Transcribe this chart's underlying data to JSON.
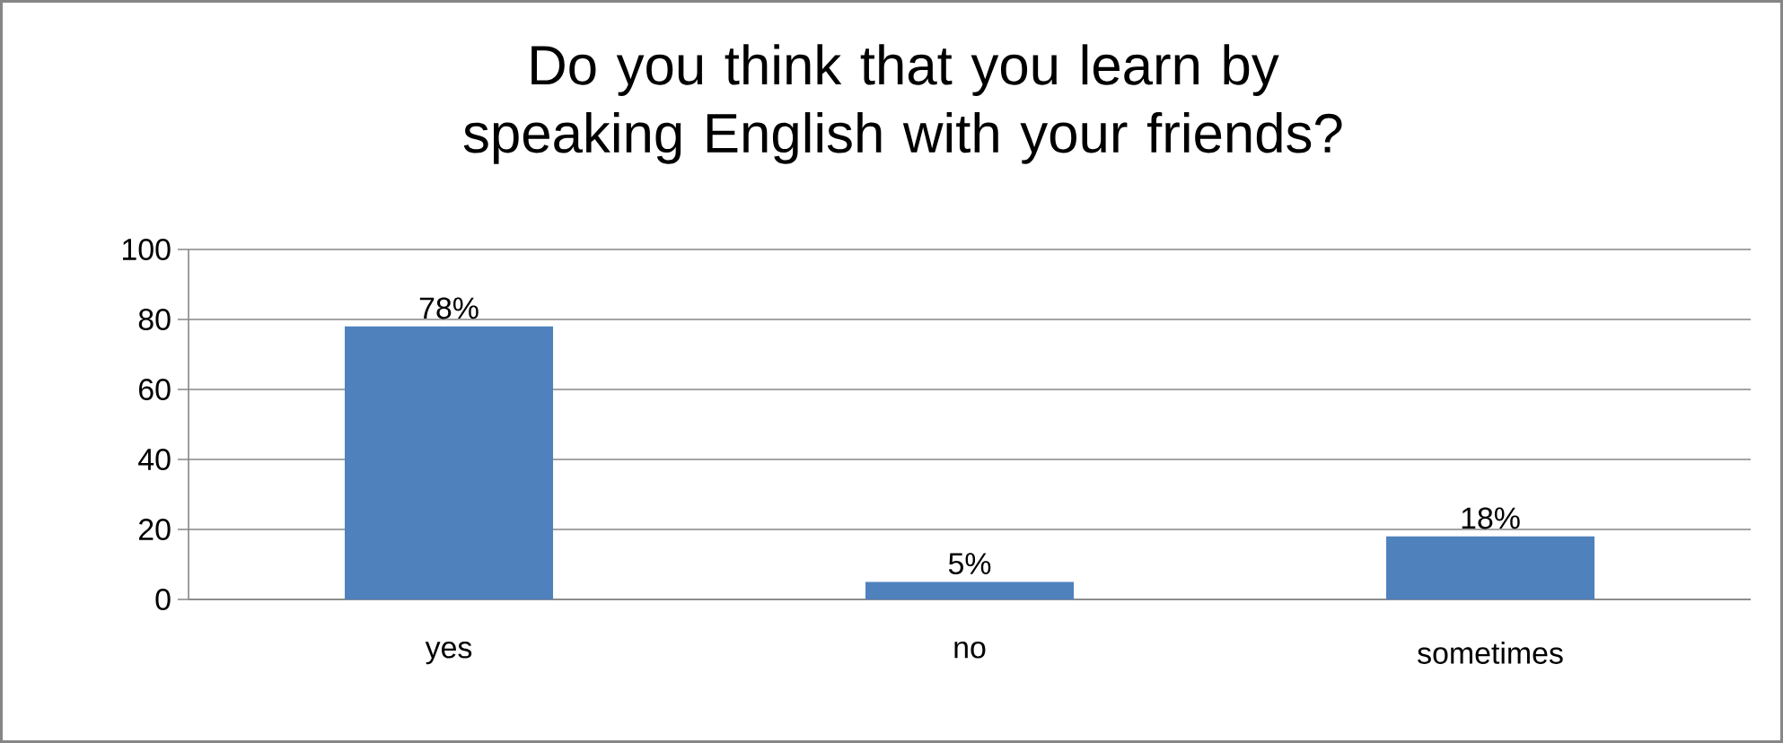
{
  "chart_data": {
    "type": "bar",
    "title": "Do you think that you learn by speaking English with your friends?",
    "categories": [
      "yes",
      "no",
      "sometimes"
    ],
    "values": [
      78,
      5,
      18
    ],
    "value_labels": [
      "78%",
      "5%",
      "18%"
    ],
    "color": "#4f81bd",
    "ylim": [
      0,
      100
    ],
    "yticks": [
      0,
      20,
      40,
      60,
      80,
      100
    ],
    "grid": "y"
  }
}
